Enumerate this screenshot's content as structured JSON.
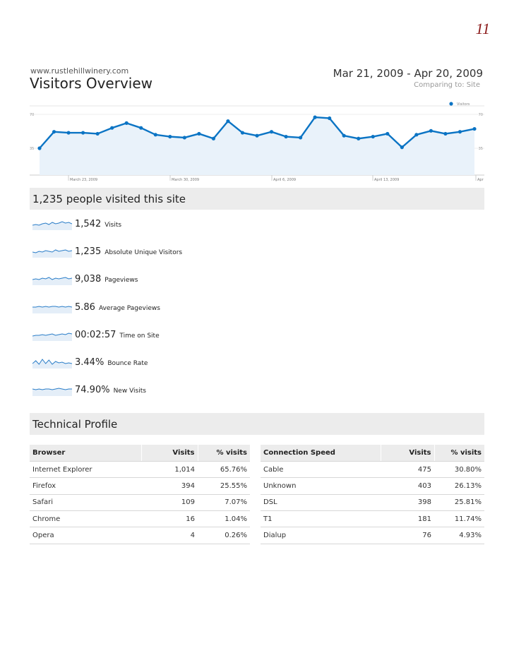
{
  "page_number": "11",
  "header": {
    "site_url": "www.rustlehillwinery.com",
    "title": "Visitors Overview",
    "date_range": "Mar 21, 2009 - Apr 20, 2009",
    "comparing": "Comparing to:  Site"
  },
  "chart_data": {
    "type": "line",
    "legend": [
      "Visitors"
    ],
    "y_ticks": [
      "70",
      "35"
    ],
    "x_ticks": [
      "March 23, 2009",
      "March 30, 2009",
      "April 6, 2009",
      "April 13, 2009",
      "Apr"
    ],
    "ylim": [
      0,
      70
    ],
    "series": [
      {
        "name": "Visitors",
        "values": [
          35,
          52,
          51,
          51,
          50,
          56,
          61,
          56,
          49,
          47,
          46,
          50,
          45,
          63,
          51,
          48,
          52,
          47,
          46,
          67,
          66,
          48,
          45,
          47,
          50,
          36,
          49,
          53,
          50,
          52,
          55
        ]
      }
    ],
    "color": "#0b74c4",
    "grid": true
  },
  "summary": {
    "title": "1,235 people visited this site",
    "metrics": [
      {
        "value": "1,542",
        "label": "Visits"
      },
      {
        "value": "1,235",
        "label": "Absolute Unique Visitors"
      },
      {
        "value": "9,038",
        "label": "Pageviews"
      },
      {
        "value": "5.86",
        "label": "Average Pageviews"
      },
      {
        "value": "00:02:57",
        "label": "Time on Site"
      },
      {
        "value": "3.44%",
        "label": "Bounce Rate"
      },
      {
        "value": "74.90%",
        "label": "New Visits"
      }
    ]
  },
  "technical": {
    "title": "Technical Profile",
    "browser": {
      "headers": [
        "Browser",
        "Visits",
        "% visits"
      ],
      "rows": [
        [
          "Internet Explorer",
          "1,014",
          "65.76%"
        ],
        [
          "Firefox",
          "394",
          "25.55%"
        ],
        [
          "Safari",
          "109",
          "7.07%"
        ],
        [
          "Chrome",
          "16",
          "1.04%"
        ],
        [
          "Opera",
          "4",
          "0.26%"
        ]
      ]
    },
    "connection": {
      "headers": [
        "Connection Speed",
        "Visits",
        "% visits"
      ],
      "rows": [
        [
          "Cable",
          "475",
          "30.80%"
        ],
        [
          "Unknown",
          "403",
          "26.13%"
        ],
        [
          "DSL",
          "398",
          "25.81%"
        ],
        [
          "T1",
          "181",
          "11.74%"
        ],
        [
          "Dialup",
          "76",
          "4.93%"
        ]
      ]
    }
  }
}
